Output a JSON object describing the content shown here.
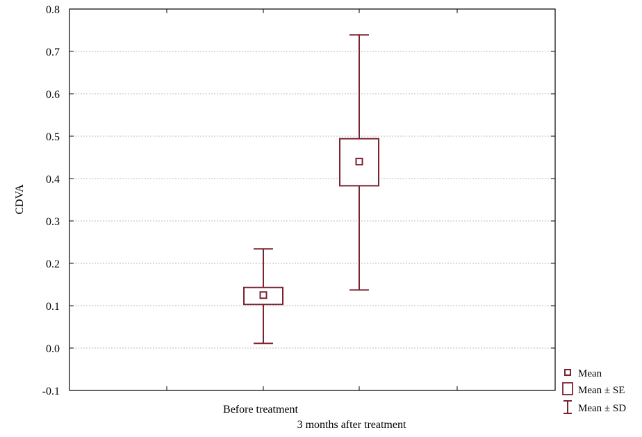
{
  "chart_data": {
    "type": "box",
    "ylabel": "CDVA",
    "ylim": [
      -0.1,
      0.8
    ],
    "yticks": [
      "-0.1",
      "0.0",
      "0.1",
      "0.2",
      "0.3",
      "0.4",
      "0.5",
      "0.6",
      "0.7",
      "0.8"
    ],
    "grid": true,
    "categories": [
      "Before treatment",
      "3 months after treatment"
    ],
    "groups": [
      {
        "category": "Before treatment",
        "mean": 0.125,
        "se_low": 0.103,
        "se_high": 0.143,
        "sd_low": 0.011,
        "sd_high": 0.234
      },
      {
        "category": "3 months after treatment",
        "mean": 0.44,
        "se_low": 0.383,
        "se_high": 0.494,
        "sd_low": 0.137,
        "sd_high": 0.739
      }
    ],
    "legend": {
      "position": "bottom-right",
      "items": [
        "Mean",
        "Mean ± SE",
        "Mean ± SD"
      ]
    },
    "colors": {
      "series": "#7a2230",
      "grid": "#bbbbbb",
      "axis": "#000000"
    }
  }
}
